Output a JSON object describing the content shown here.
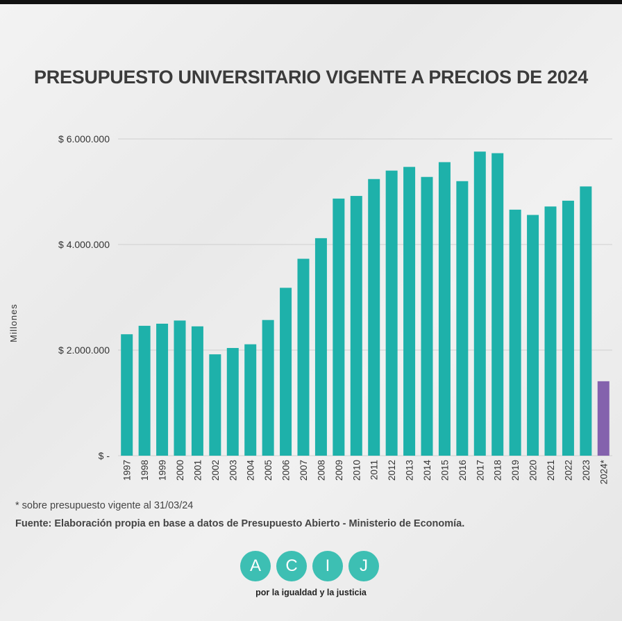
{
  "title": "PRESUPUESTO UNIVERSITARIO VIGENTE A PRECIOS DE  2024",
  "footnote": "* sobre presupuesto vigente al 31/03/24",
  "source": "Fuente: Elaboración propia en base a datos de Presupuesto Abierto - Ministerio de Economía.",
  "logo": {
    "letters": [
      "A",
      "C",
      "I",
      "J"
    ],
    "tagline": "por la igualdad y la justicia",
    "color": "#3dbfb3"
  },
  "colors": {
    "bar": "#1eb1aa",
    "highlight": "#8462ad",
    "grid": "#cfcfcf",
    "text": "#333333"
  },
  "chart_data": {
    "type": "bar",
    "title": "PRESUPUESTO UNIVERSITARIO VIGENTE A PRECIOS DE  2024",
    "ylabel": "Millones",
    "xlabel": "",
    "ylim": [
      0,
      6000000
    ],
    "yticks": [
      0,
      2000000,
      4000000,
      6000000
    ],
    "ytick_labels": [
      "$ -",
      "$ 2.000.000",
      "$ 4.000.000",
      "$ 6.000.000"
    ],
    "grid": "horizontal",
    "categories": [
      "1997",
      "1998",
      "1999",
      "2000",
      "2001",
      "2002",
      "2003",
      "2004",
      "2005",
      "2006",
      "2007",
      "2008",
      "2009",
      "2010",
      "2011",
      "2012",
      "2013",
      "2014",
      "2015",
      "2016",
      "2017",
      "2018",
      "2019",
      "2020",
      "2021",
      "2022",
      "2023",
      "2024*"
    ],
    "values": [
      2300000,
      2460000,
      2500000,
      2560000,
      2450000,
      1920000,
      2040000,
      2110000,
      2570000,
      3180000,
      3730000,
      4120000,
      4870000,
      4920000,
      5240000,
      5400000,
      5470000,
      5280000,
      5560000,
      5200000,
      5760000,
      5730000,
      4660000,
      4560000,
      4720000,
      4830000,
      5100000,
      1410000
    ],
    "highlighted_category": "2024*"
  }
}
